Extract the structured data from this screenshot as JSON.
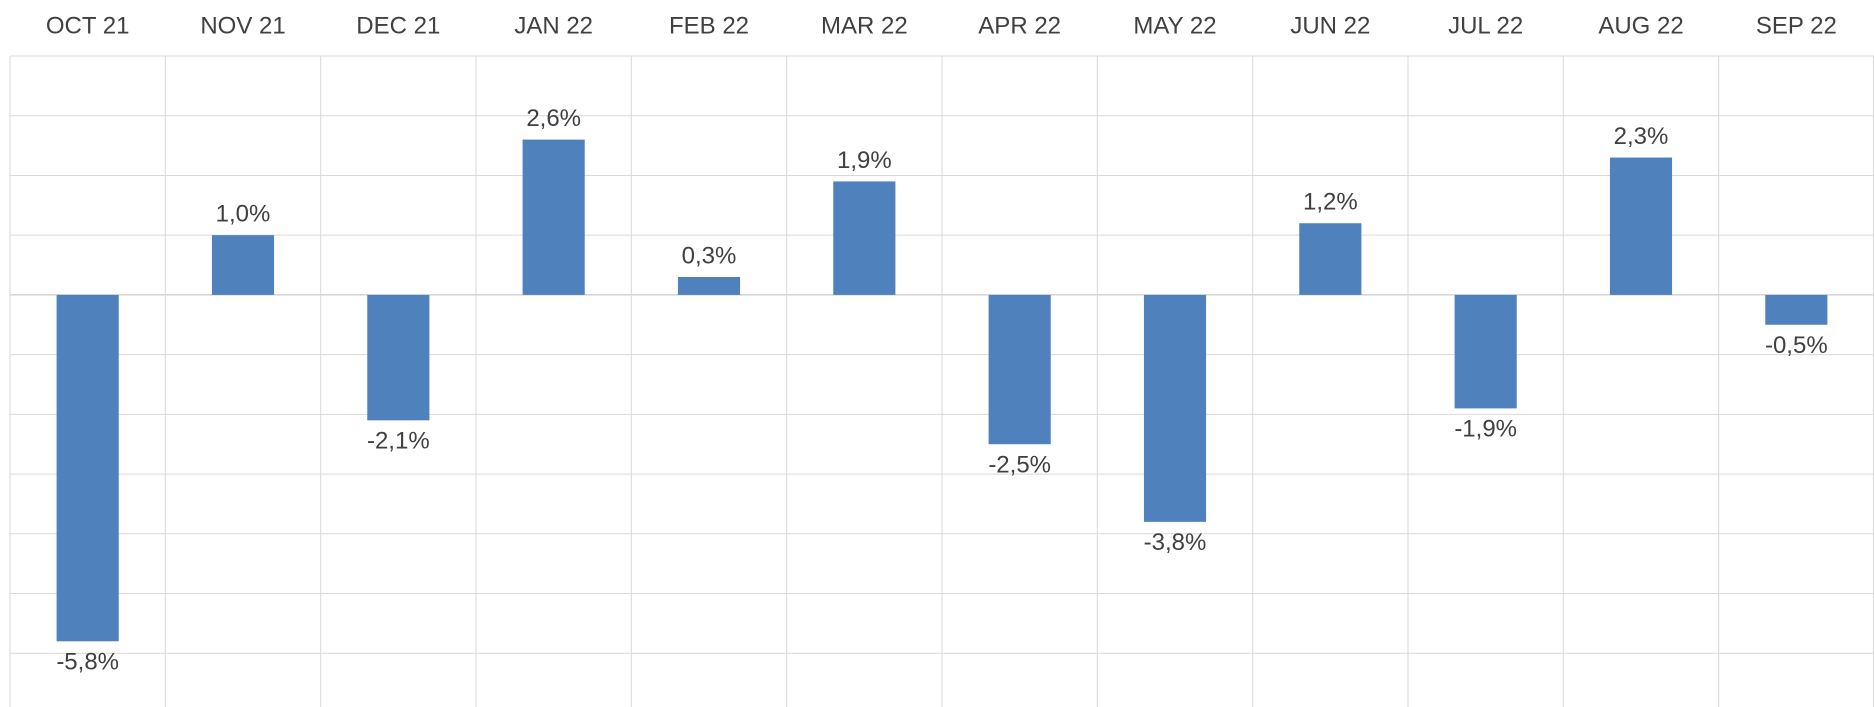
{
  "chart_data": {
    "type": "bar",
    "categories": [
      "OCT 21",
      "NOV 21",
      "DEC 21",
      "JAN 22",
      "FEB 22",
      "MAR 22",
      "APR 22",
      "MAY 22",
      "JUN 22",
      "JUL 22",
      "AUG 22",
      "SEP 22"
    ],
    "values": [
      -5.8,
      1.0,
      -2.1,
      2.6,
      0.3,
      1.9,
      -2.5,
      -3.8,
      1.2,
      -1.9,
      2.3,
      -0.5
    ],
    "value_labels": [
      "-5,8%",
      "1,0%",
      "-2,1%",
      "2,6%",
      "0,3%",
      "1,9%",
      "-2,5%",
      "-3,8%",
      "1,2%",
      "-1,9%",
      "2,3%",
      "-0,5%"
    ],
    "color": "#4f81bd",
    "ylim": [
      -6.9,
      4
    ],
    "yticks": [
      -6,
      -5,
      -4,
      -3,
      -2,
      -1,
      0,
      1,
      2,
      3,
      4
    ],
    "grid": true
  }
}
